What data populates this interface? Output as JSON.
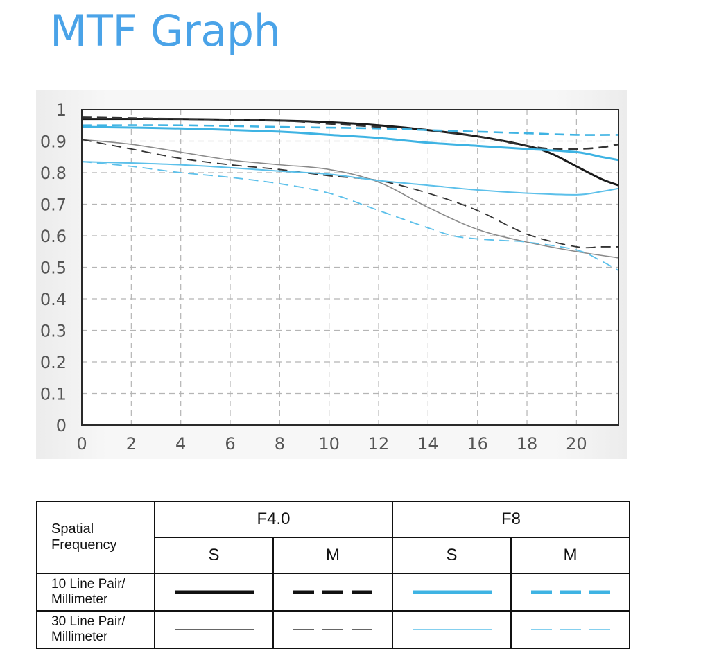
{
  "title": "MTF Graph",
  "chart_data": {
    "type": "line",
    "x_ticks": [
      0,
      2,
      4,
      6,
      8,
      10,
      12,
      14,
      16,
      18,
      20
    ],
    "y_ticks": [
      "0",
      "0.1",
      "0.2",
      "0.3",
      "0.4",
      "0.5",
      "0.6",
      "0.7",
      "0.8",
      "0.9",
      "1"
    ],
    "xlim": [
      0,
      21.7
    ],
    "ylim": [
      0,
      1
    ],
    "grid": true,
    "series": [
      {
        "key": "f4_s_10",
        "color": "#1a1a1a",
        "dash": "solid",
        "width": 3,
        "x": [
          0,
          4,
          8,
          10,
          12,
          14,
          16,
          18,
          19,
          20,
          21,
          21.7
        ],
        "y": [
          0.97,
          0.97,
          0.965,
          0.96,
          0.95,
          0.935,
          0.915,
          0.885,
          0.86,
          0.82,
          0.78,
          0.76
        ]
      },
      {
        "key": "f4_m_10",
        "color": "#333333",
        "dash": "dashed",
        "width": 2.6,
        "x": [
          0,
          4,
          8,
          10,
          12,
          14,
          16,
          17,
          18,
          19,
          20,
          21,
          21.7
        ],
        "y": [
          0.975,
          0.97,
          0.965,
          0.955,
          0.945,
          0.935,
          0.915,
          0.9,
          0.885,
          0.875,
          0.875,
          0.88,
          0.89
        ]
      },
      {
        "key": "f8_s_10",
        "color": "#3eb3e3",
        "dash": "solid",
        "width": 3,
        "x": [
          0,
          4,
          8,
          10,
          12,
          14,
          16,
          18,
          20,
          21,
          21.7
        ],
        "y": [
          0.945,
          0.94,
          0.93,
          0.92,
          0.91,
          0.895,
          0.885,
          0.875,
          0.865,
          0.85,
          0.84
        ]
      },
      {
        "key": "f8_m_10",
        "color": "#3eb3e3",
        "dash": "dashed",
        "width": 2.6,
        "x": [
          0,
          4,
          8,
          12,
          14,
          16,
          18,
          20,
          21.7
        ],
        "y": [
          0.95,
          0.95,
          0.945,
          0.94,
          0.935,
          0.93,
          0.925,
          0.92,
          0.92
        ]
      },
      {
        "key": "f4_s_30",
        "color": "#8a8a8a",
        "dash": "solid",
        "width": 1.6,
        "x": [
          0,
          2,
          4,
          6,
          8,
          10,
          12,
          14,
          16,
          18,
          20,
          21.7
        ],
        "y": [
          0.905,
          0.89,
          0.865,
          0.84,
          0.825,
          0.81,
          0.77,
          0.69,
          0.62,
          0.58,
          0.55,
          0.53
        ]
      },
      {
        "key": "f4_m_30",
        "color": "#333333",
        "dash": "dashed",
        "width": 1.8,
        "x": [
          0,
          2,
          4,
          6,
          8,
          10,
          12,
          14,
          16,
          18,
          20,
          21,
          21.7
        ],
        "y": [
          0.905,
          0.875,
          0.845,
          0.825,
          0.81,
          0.79,
          0.775,
          0.735,
          0.68,
          0.605,
          0.565,
          0.565,
          0.565
        ]
      },
      {
        "key": "f8_s_30",
        "color": "#5cc0ea",
        "dash": "solid",
        "width": 2,
        "x": [
          0,
          4,
          8,
          10,
          12,
          14,
          16,
          18,
          20,
          21,
          21.7
        ],
        "y": [
          0.835,
          0.825,
          0.805,
          0.795,
          0.775,
          0.76,
          0.745,
          0.735,
          0.73,
          0.74,
          0.75
        ]
      },
      {
        "key": "f8_m_30",
        "color": "#5cc0ea",
        "dash": "dashed",
        "width": 1.8,
        "x": [
          0,
          2,
          4,
          6,
          8,
          10,
          12,
          14,
          15,
          16,
          17,
          18,
          20,
          21,
          21.7
        ],
        "y": [
          0.835,
          0.82,
          0.8,
          0.785,
          0.765,
          0.735,
          0.68,
          0.625,
          0.6,
          0.59,
          0.585,
          0.58,
          0.555,
          0.52,
          0.49
        ]
      }
    ]
  },
  "legend_table": {
    "header_label": [
      "Spatial",
      "Frequency"
    ],
    "aperture_1": "F4.0",
    "aperture_2": "F8",
    "col_s": "S",
    "col_m": "M",
    "row_10_label": [
      "10 Line Pair/",
      "Millimeter"
    ],
    "row_30_label": [
      "30 Line Pair/",
      "Millimeter"
    ]
  }
}
